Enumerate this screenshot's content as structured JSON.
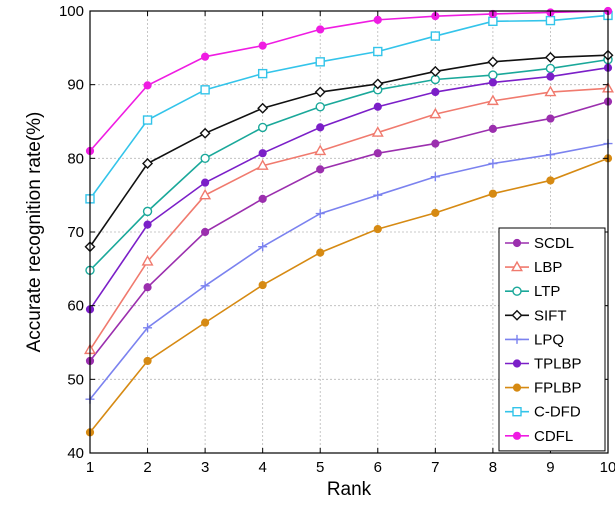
{
  "chart_data": {
    "type": "line",
    "title": "",
    "xlabel": "Rank",
    "ylabel": "Accurate recognition rate(%)",
    "x": [
      1,
      2,
      3,
      4,
      5,
      6,
      7,
      8,
      9,
      10
    ],
    "xlim": [
      1,
      10
    ],
    "ylim": [
      40,
      100
    ],
    "xticks": [
      "1",
      "2",
      "3",
      "4",
      "5",
      "6",
      "7",
      "8",
      "9",
      "10"
    ],
    "yticks": [
      "40",
      "50",
      "60",
      "70",
      "80",
      "90",
      "100"
    ],
    "grid": true,
    "legend_position": "bottom-right",
    "series": [
      {
        "name": "SCDL",
        "color": "#9b2fae",
        "marker": "dot",
        "values": [
          52.5,
          62.5,
          70.0,
          74.5,
          78.5,
          80.7,
          82.0,
          84.0,
          85.4,
          87.7
        ]
      },
      {
        "name": "LBP",
        "color": "#f07a6e",
        "marker": "triangle",
        "values": [
          54.0,
          66.0,
          75.0,
          79.0,
          81.0,
          83.5,
          86.0,
          87.8,
          89.0,
          89.5
        ]
      },
      {
        "name": "LTP",
        "color": "#1aa89a",
        "marker": "circle",
        "values": [
          64.8,
          72.8,
          80.0,
          84.2,
          87.0,
          89.3,
          90.7,
          91.3,
          92.2,
          93.4
        ]
      },
      {
        "name": "SIFT",
        "color": "#111111",
        "marker": "diamond",
        "values": [
          68.0,
          79.3,
          83.4,
          86.8,
          89.0,
          90.1,
          91.8,
          93.1,
          93.7,
          94.0
        ]
      },
      {
        "name": "LPQ",
        "color": "#7b82ef",
        "marker": "plus",
        "values": [
          47.3,
          57.0,
          62.7,
          68.0,
          72.5,
          75.0,
          77.5,
          79.3,
          80.5,
          82.0
        ]
      },
      {
        "name": "TPLBP",
        "color": "#7b1fc8",
        "marker": "dot",
        "values": [
          59.5,
          71.0,
          76.7,
          80.7,
          84.2,
          87.0,
          89.0,
          90.3,
          91.1,
          92.3
        ]
      },
      {
        "name": "FPLBP",
        "color": "#d68a13",
        "marker": "dot",
        "values": [
          42.8,
          52.5,
          57.7,
          62.8,
          67.2,
          70.4,
          72.6,
          75.2,
          77.0,
          80.0
        ]
      },
      {
        "name": "C-DFD",
        "color": "#33c4ea",
        "marker": "square",
        "values": [
          74.5,
          85.2,
          89.3,
          91.5,
          93.1,
          94.5,
          96.6,
          98.6,
          98.7,
          99.4
        ]
      },
      {
        "name": "CDFL",
        "color": "#ef1ce2",
        "marker": "dot",
        "values": [
          81.0,
          89.9,
          93.8,
          95.3,
          97.5,
          98.8,
          99.3,
          99.6,
          99.8,
          100.0
        ]
      }
    ]
  }
}
